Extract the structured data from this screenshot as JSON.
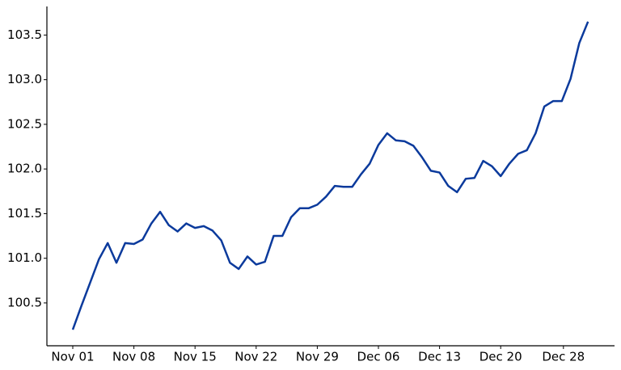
{
  "chart_data": {
    "type": "line",
    "categories": [
      "Nov 01",
      null,
      null,
      null,
      null,
      null,
      null,
      "Nov 08",
      null,
      null,
      null,
      null,
      null,
      null,
      "Nov 15",
      null,
      null,
      null,
      null,
      null,
      null,
      "Nov 22",
      null,
      null,
      null,
      null,
      null,
      null,
      "Nov 29",
      null,
      null,
      null,
      null,
      null,
      null,
      "Dec 06",
      null,
      null,
      null,
      null,
      null,
      null,
      "Dec 13",
      null,
      null,
      null,
      null,
      null,
      null,
      "Dec 20",
      null,
      null,
      null,
      null,
      null,
      null,
      "Dec 28",
      null,
      null,
      null
    ],
    "values": [
      100.2,
      100.47,
      100.73,
      100.99,
      101.17,
      100.95,
      101.17,
      101.16,
      101.21,
      101.39,
      101.52,
      101.37,
      101.3,
      101.39,
      101.34,
      101.36,
      101.31,
      101.2,
      100.95,
      100.88,
      101.02,
      100.93,
      100.96,
      101.25,
      101.25,
      101.46,
      101.56,
      101.56,
      101.6,
      101.69,
      101.81,
      101.8,
      101.8,
      101.94,
      102.06,
      102.27,
      102.4,
      102.32,
      102.31,
      102.26,
      102.13,
      101.98,
      101.96,
      101.81,
      101.74,
      101.89,
      101.9,
      102.09,
      102.03,
      101.92,
      102.06,
      102.17,
      102.21,
      102.4,
      102.7,
      102.76,
      102.76,
      103.01,
      103.41,
      103.65
    ],
    "color": "#0b3a9c",
    "ylim": [
      100.02,
      103.82
    ],
    "yticks": [
      100.5,
      {
        "value": 101,
        "label": "101.0"
      },
      101.5,
      {
        "value": 102,
        "label": "102.0"
      },
      102.5,
      {
        "value": 103,
        "label": "103.0"
      },
      103.5
    ]
  }
}
